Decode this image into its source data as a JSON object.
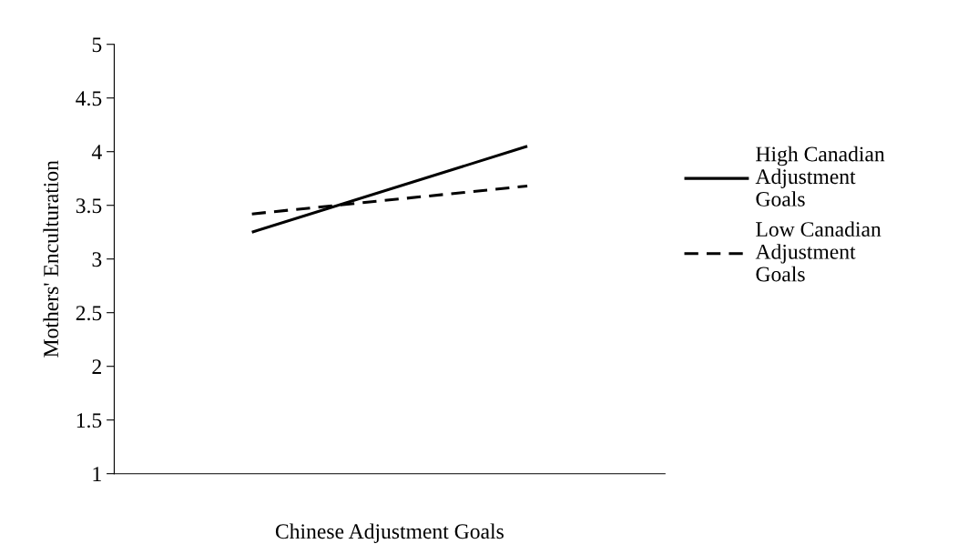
{
  "chart_data": {
    "type": "line",
    "xlabel": "Chinese Adjustment Goals",
    "ylabel": "Mothers' Enculturation",
    "categories": [
      null,
      null
    ],
    "series": [
      {
        "name": "High Canadian\nAdjustment\nGoals",
        "color": "#000000",
        "values": [
          3.25,
          4.05
        ],
        "line_style": "solid"
      },
      {
        "name": "Low Canadian\nAdjustment\nGoals",
        "color": "#000000",
        "values": [
          3.42,
          3.68
        ],
        "line_style": "dashed"
      }
    ],
    "ylim": [
      1,
      5
    ],
    "yticks": [
      1,
      1.5,
      2,
      2.5,
      3,
      3.5,
      4,
      4.5,
      5
    ],
    "grid": false,
    "legend": "right",
    "marker": "none"
  }
}
